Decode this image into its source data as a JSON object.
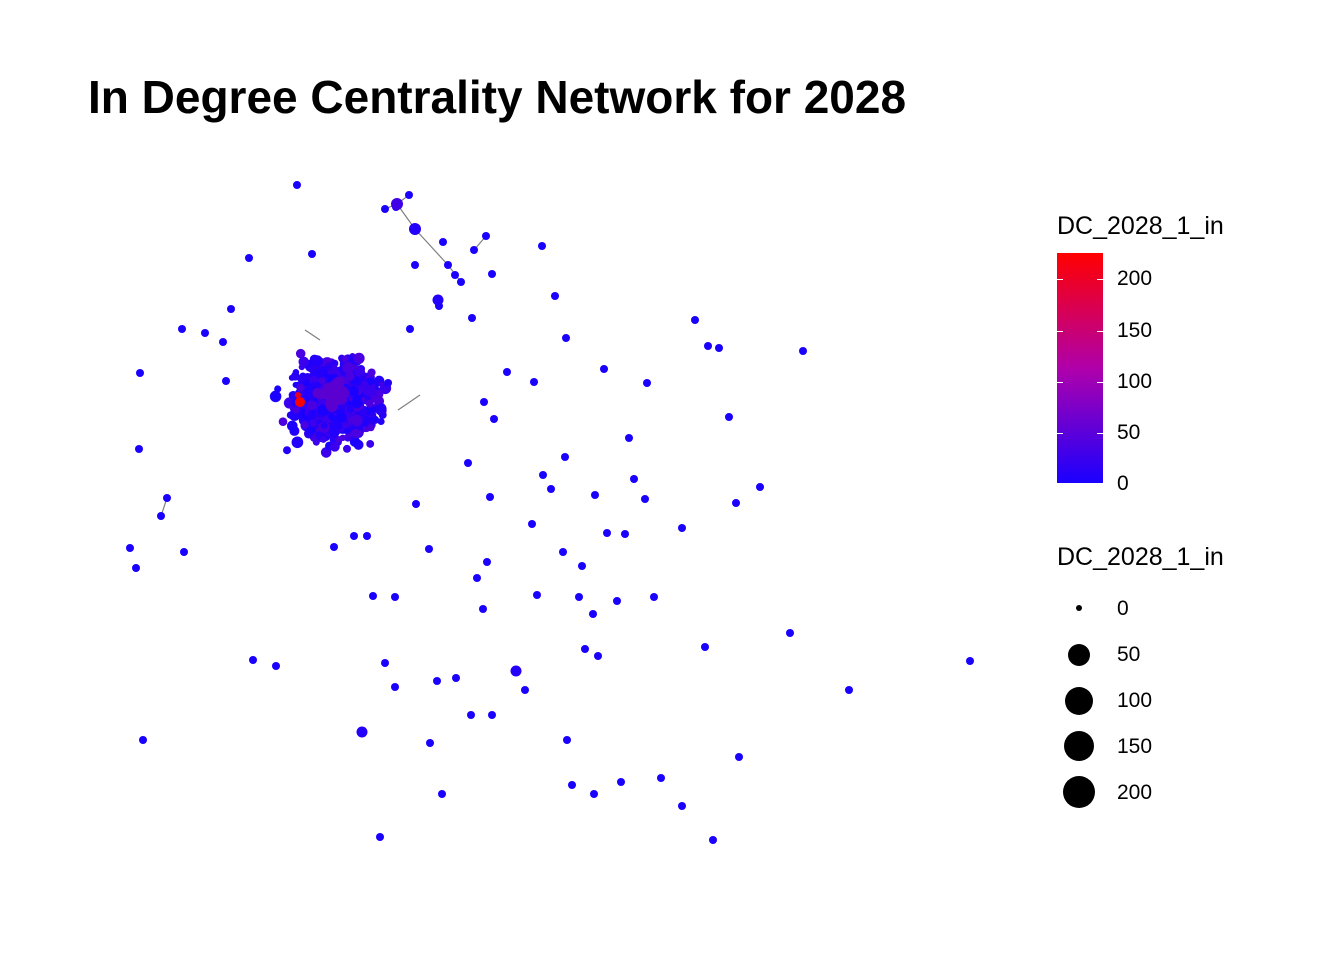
{
  "chart_data": {
    "type": "network",
    "title": "In Degree Centrality Network for 2028",
    "color_legend": {
      "title": "DC_2028_1_in",
      "ticks": [
        "200",
        "150",
        "100",
        "50",
        "0"
      ],
      "range": [
        0,
        225
      ],
      "low_color": "#1a00ff",
      "mid_color": "#b000aa",
      "high_color": "#ff0000"
    },
    "size_legend": {
      "title": "DC_2028_1_in",
      "entries": [
        "0",
        "50",
        "100",
        "150",
        "200"
      ],
      "values": [
        0,
        50,
        100,
        150,
        200
      ]
    },
    "edge_color": "#808080"
  }
}
